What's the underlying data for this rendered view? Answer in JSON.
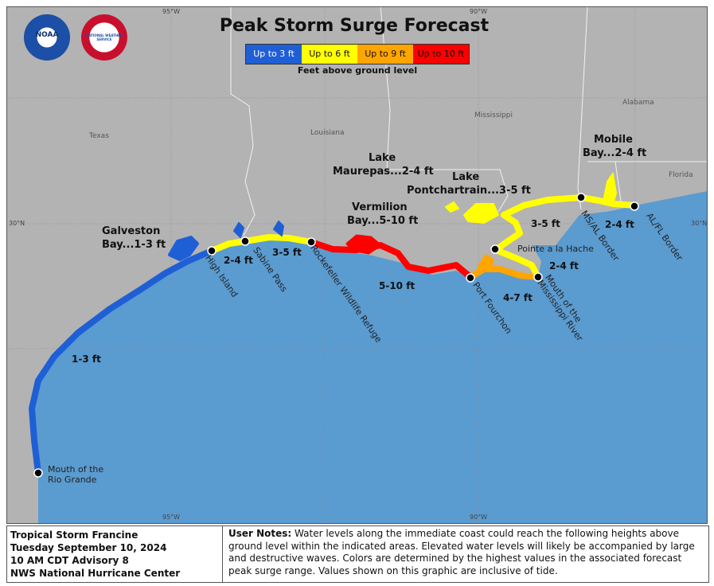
{
  "title": "Peak Storm Surge Forecast",
  "legend": {
    "items": [
      {
        "label": "Up to 3 ft",
        "color": "#1f5fd6",
        "text_color": "#ffffff"
      },
      {
        "label": "Up to 6 ft",
        "color": "#ffff00",
        "text_color": "#111111"
      },
      {
        "label": "Up to 9 ft",
        "color": "#ffa500",
        "text_color": "#111111"
      },
      {
        "label": "Up to 10 ft",
        "color": "#ff0000",
        "text_color": "#111111"
      }
    ],
    "caption": "Feet above ground level"
  },
  "logos": {
    "noaa": "NOAA",
    "nws": "NATIONAL WEATHER SERVICE"
  },
  "graticule": {
    "lon_top_left": "95°W",
    "lon_top_right": "90°W",
    "lon_bottom_left": "95°W",
    "lon_bottom_right": "90°W",
    "lat_left": "30°N",
    "lat_right": "30°N"
  },
  "states": {
    "texas": "Texas",
    "louisiana": "Louisiana",
    "mississippi": "Mississippi",
    "alabama": "Alabama",
    "florida": "Florida"
  },
  "areas": {
    "galveston_1": "Galveston",
    "galveston_2": "Bay...1-3 ft",
    "lake_maurepas_1": "Lake",
    "lake_maurepas_2": "Maurepas...2-4 ft",
    "vermilion_1": "Vermilion",
    "vermilion_2": "Bay...5-10 ft",
    "lake_pontchartrain_1": "Lake",
    "lake_pontchartrain_2": "Pontchartrain...3-5 ft",
    "mobile_1": "Mobile",
    "mobile_2": "Bay...2-4 ft"
  },
  "segments": {
    "s1": "1-3 ft",
    "s2": "2-4 ft",
    "s3": "3-5 ft",
    "s4": "5-10 ft",
    "s5": "4-7 ft",
    "s6": "2-4 ft",
    "s7": "3-5 ft",
    "s8": "2-4 ft"
  },
  "points": {
    "rio_1": "Mouth of the",
    "rio_2": "Rio Grande",
    "high_island": "High Island",
    "sabine_pass": "Sabine Pass",
    "rockefeller": "Rockefeller Wildlife Refuge",
    "port_fourchon": "Port Fourchon",
    "pointe": "Pointe a la Hache",
    "miss_1": "Mouth of the",
    "miss_2": "Mississippi River",
    "ms_al": "MS/AL Border",
    "al_fl": "AL/FL Border"
  },
  "footer": {
    "line1": "Tropical Storm Francine",
    "line2": "Tuesday September 10, 2024",
    "line3": "10 AM CDT Advisory 8",
    "line4": "NWS National Hurricane Center",
    "notes_label": "User Notes:",
    "notes_text": " Water levels along the immediate coast could reach the following heights above ground level within the indicated areas. Elevated water levels will likely be accompanied by large and destructive waves. Colors are determined by the highest values in the associated forecast peak surge range. Values shown on this graphic are inclusive of tide."
  }
}
